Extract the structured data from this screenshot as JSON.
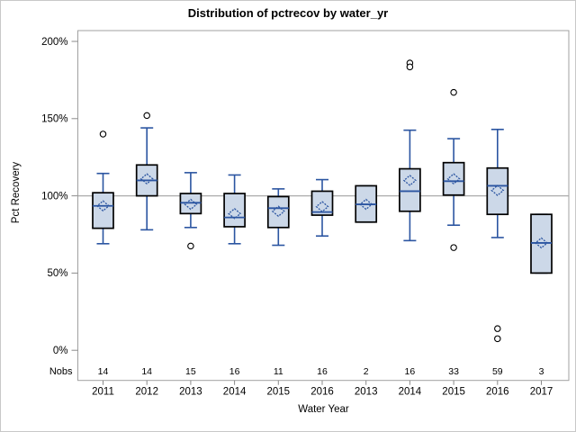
{
  "chart_data": {
    "type": "boxplot",
    "title": "Distribution of pctrecov by water_yr",
    "xlabel": "Water Year",
    "ylabel": "Pct Recovery",
    "nobs_label": "Nobs",
    "y_ticks": [
      0,
      50,
      100,
      150,
      200
    ],
    "y_tick_labels": [
      "0%",
      "50%",
      "100%",
      "150%",
      "200%"
    ],
    "ylim": [
      -19.5,
      207
    ],
    "reference_line": 100,
    "grid": "off",
    "categories": [
      "2011",
      "2012",
      "2013",
      "2014",
      "2015",
      "2016",
      "2013",
      "2014",
      "2015",
      "2016",
      "2017"
    ],
    "nobs": [
      14,
      14,
      15,
      16,
      11,
      16,
      2,
      16,
      33,
      59,
      3
    ],
    "boxes": [
      {
        "category": "2011",
        "nobs": 14,
        "whisker_low": 69,
        "q1": 79,
        "median": 93.5,
        "q3": 102,
        "whisker_high": 114.5,
        "mean": 93.5,
        "outliers": [
          140
        ]
      },
      {
        "category": "2012",
        "nobs": 14,
        "whisker_low": 78,
        "q1": 100,
        "median": 110,
        "q3": 120,
        "whisker_high": 144,
        "mean": 111,
        "outliers": [
          152
        ]
      },
      {
        "category": "2013",
        "nobs": 15,
        "whisker_low": 79.5,
        "q1": 88.5,
        "median": 95.5,
        "q3": 101.5,
        "whisker_high": 115,
        "mean": 94.5,
        "outliers": [
          67.5
        ]
      },
      {
        "category": "2014",
        "nobs": 16,
        "whisker_low": 69,
        "q1": 80,
        "median": 86,
        "q3": 101.5,
        "whisker_high": 113.5,
        "mean": 88.5,
        "outliers": []
      },
      {
        "category": "2015",
        "nobs": 11,
        "whisker_low": 68,
        "q1": 79.5,
        "median": 92,
        "q3": 99.5,
        "whisker_high": 104.5,
        "mean": 90,
        "outliers": []
      },
      {
        "category": "2016",
        "nobs": 16,
        "whisker_low": 74,
        "q1": 87.5,
        "median": 89.5,
        "q3": 103,
        "whisker_high": 110.5,
        "mean": 93,
        "outliers": []
      },
      {
        "category": "2013",
        "nobs": 2,
        "whisker_low": 83,
        "q1": 83,
        "median": 94.5,
        "q3": 106.5,
        "whisker_high": 106.5,
        "mean": 94.5,
        "outliers": []
      },
      {
        "category": "2014",
        "nobs": 16,
        "whisker_low": 71,
        "q1": 90,
        "median": 103,
        "q3": 117.5,
        "whisker_high": 142.5,
        "mean": 110,
        "outliers": [
          186,
          183.5
        ]
      },
      {
        "category": "2015",
        "nobs": 33,
        "whisker_low": 81,
        "q1": 100.5,
        "median": 109.5,
        "q3": 121.5,
        "whisker_high": 137,
        "mean": 111,
        "outliers": [
          167,
          66.5
        ]
      },
      {
        "category": "2016",
        "nobs": 59,
        "whisker_low": 73,
        "q1": 88,
        "median": 106.5,
        "q3": 118,
        "whisker_high": 143,
        "mean": 103.5,
        "outliers": [
          14,
          7.5
        ]
      },
      {
        "category": "2017",
        "nobs": 3,
        "whisker_low": 50,
        "q1": 50,
        "median": 69.5,
        "q3": 88,
        "whisker_high": 88,
        "mean": 69.5,
        "outliers": []
      }
    ],
    "colors": {
      "box_fill": "#ccd8e8",
      "box_border": "#000000",
      "line_blue": "#2b55a1",
      "reference_line": "#ababab",
      "frame": "#a0a0a0",
      "tick": "#8a8a8a",
      "outlier_stroke": "#000000",
      "outlier_fill": "#ffffff"
    }
  }
}
